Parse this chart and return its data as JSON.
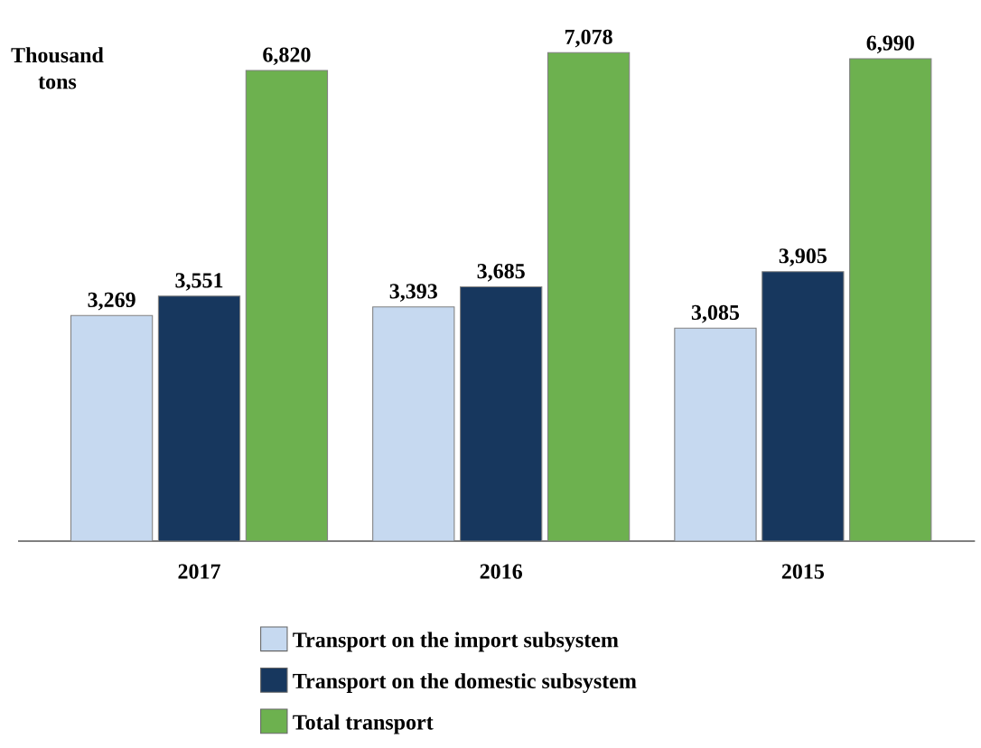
{
  "chart_data": {
    "type": "bar",
    "ylabel": "Thousand tons",
    "categories": [
      "2017",
      "2016",
      "2015"
    ],
    "series": [
      {
        "name": "Transport on the import subsystem",
        "color": "#c6d9f0",
        "values": [
          3269,
          3393,
          3085
        ],
        "value_labels": [
          "3,269",
          "3,393",
          "3,085"
        ]
      },
      {
        "name": "Transport on the domestic subsystem",
        "color": "#17375e",
        "values": [
          3551,
          3685,
          3905
        ],
        "value_labels": [
          "3,551",
          "3,685",
          "3,905"
        ]
      },
      {
        "name": "Total transport",
        "color": "#6db14f",
        "values": [
          6820,
          7078,
          6990
        ],
        "value_labels": [
          "6,820",
          "7,078",
          "6,990"
        ]
      }
    ],
    "legend": "bottom",
    "grid": false
  }
}
